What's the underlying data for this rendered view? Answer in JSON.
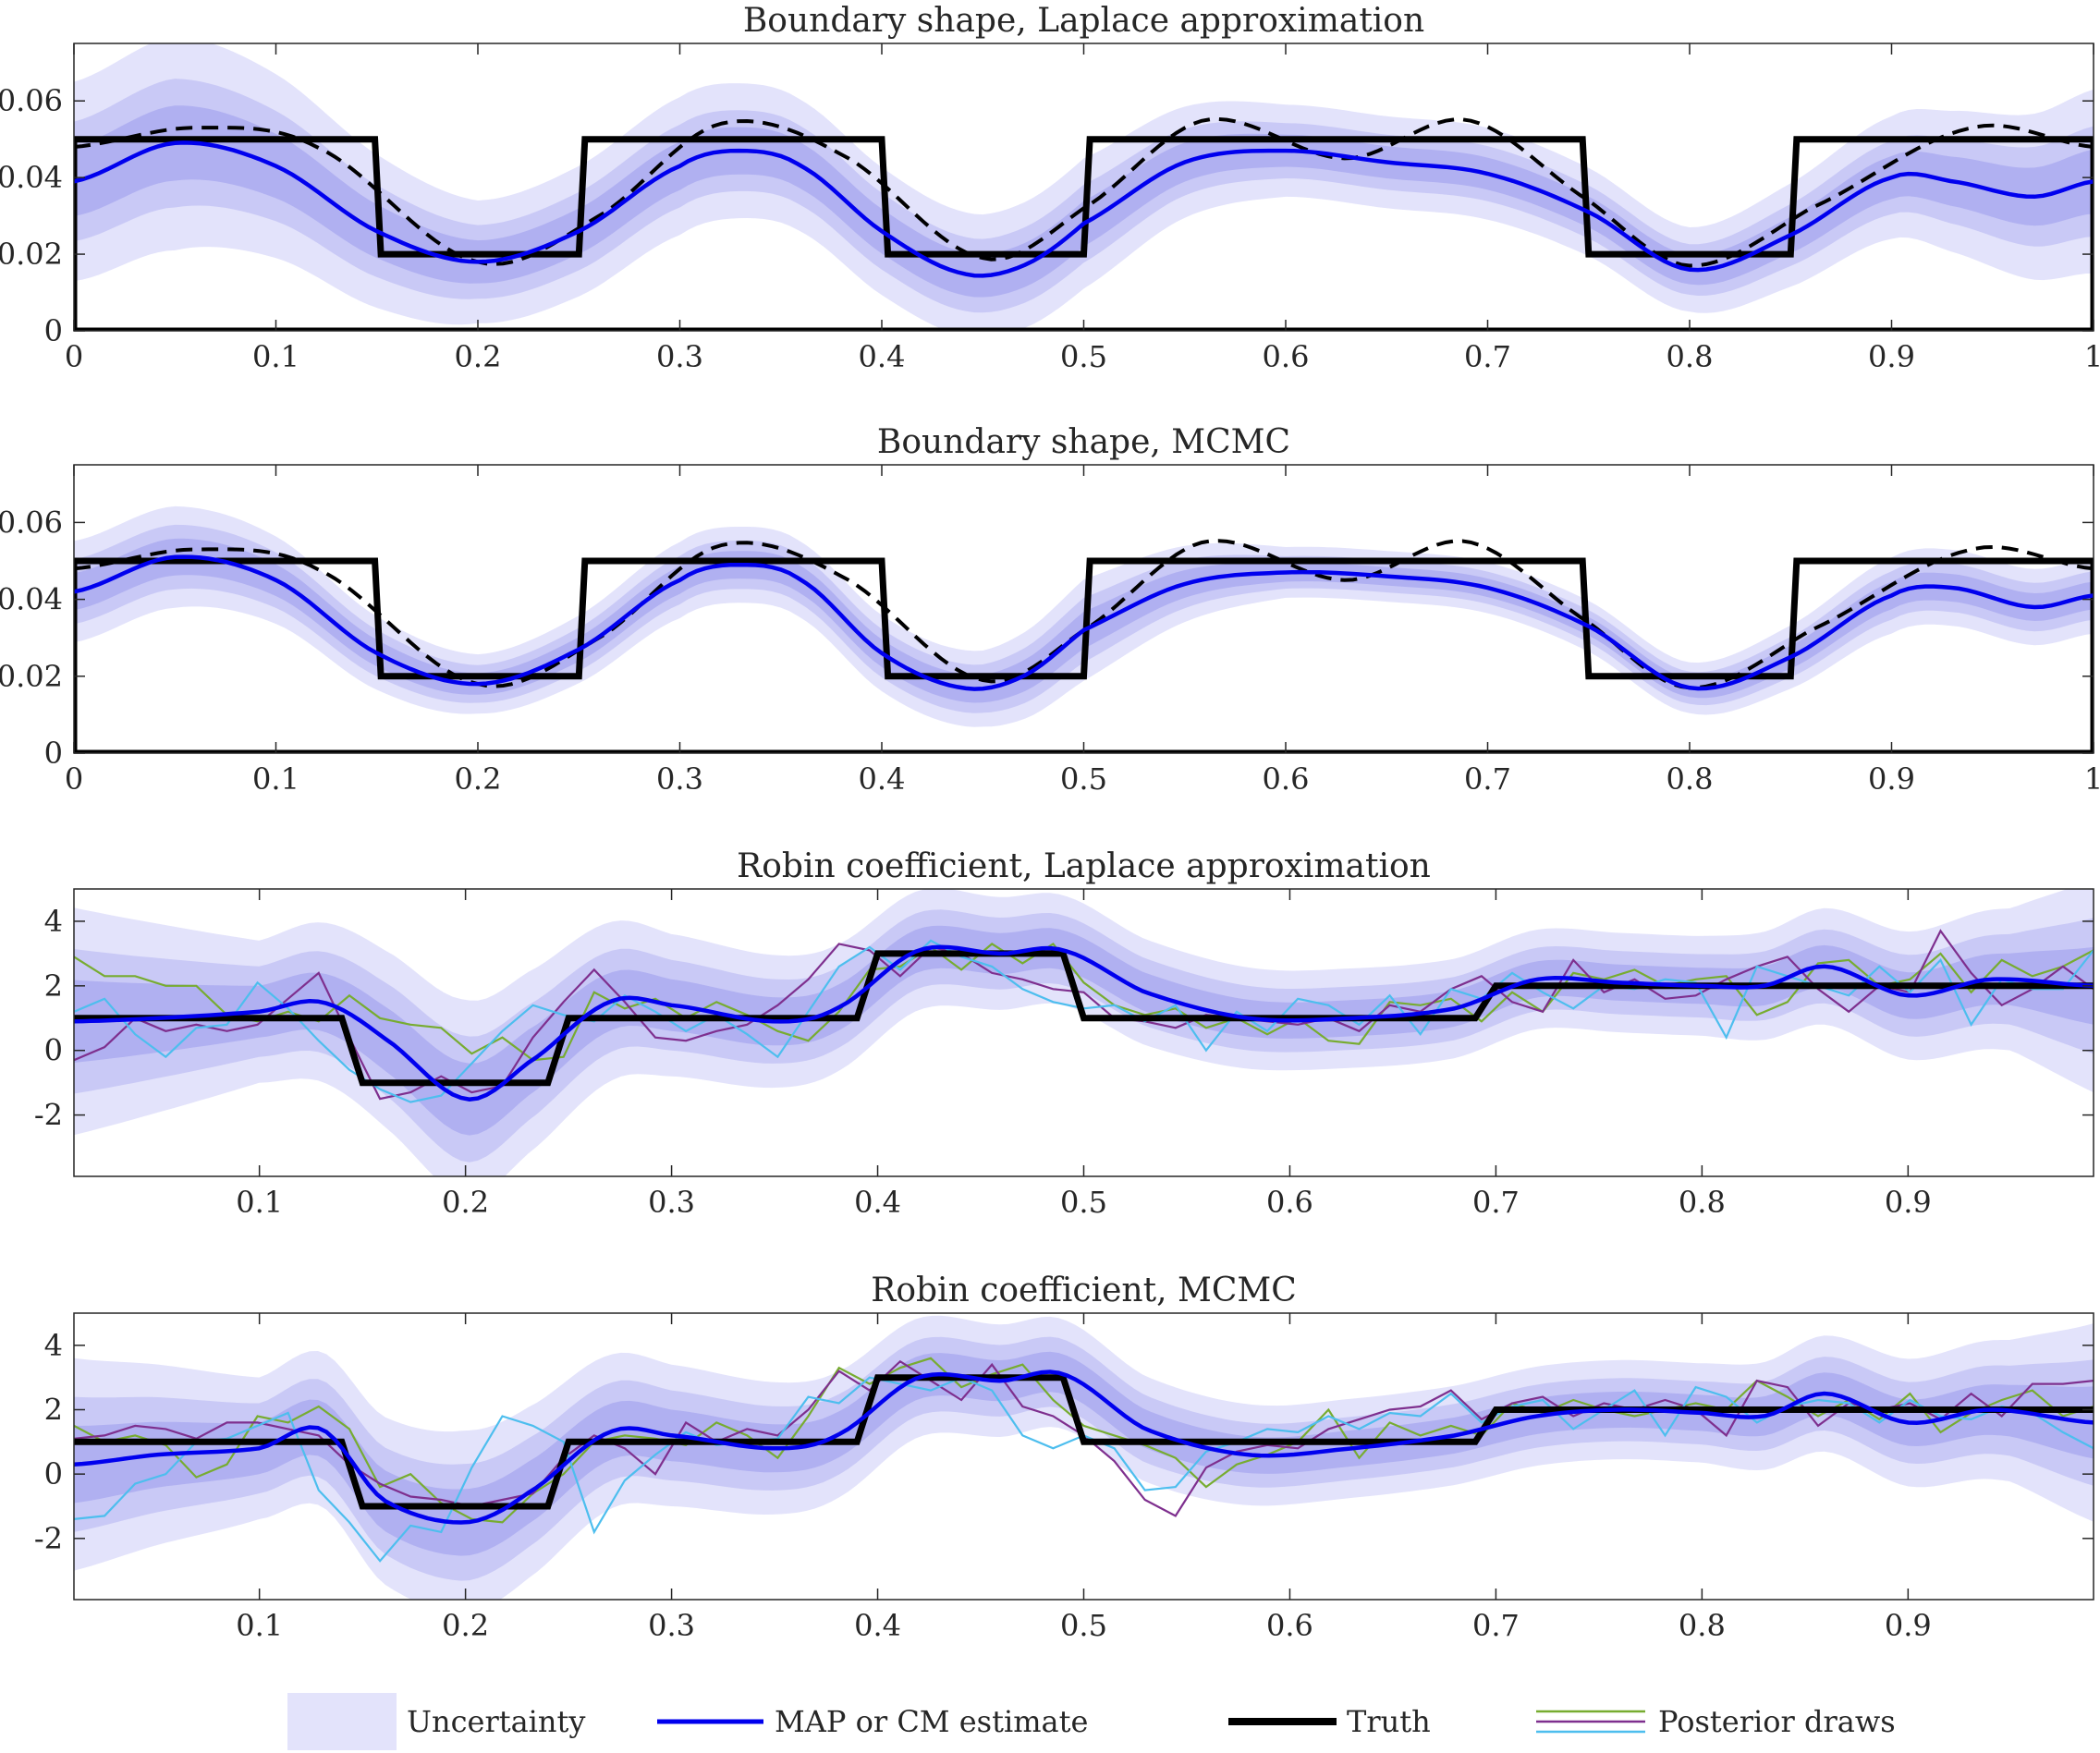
{
  "chart_data": [
    {
      "type": "line",
      "title": "Boundary shape, Laplace approximation",
      "xlim": [
        0,
        1
      ],
      "ylim": [
        0,
        0.075
      ],
      "xticks": [
        0,
        0.1,
        0.2,
        0.3,
        0.4,
        0.5,
        0.6,
        0.7,
        0.8,
        0.9,
        1
      ],
      "xtick_labels": [
        "0",
        "0.1",
        "0.2",
        "0.3",
        "0.4",
        "0.5",
        "0.6",
        "0.7",
        "0.8",
        "0.9",
        "1"
      ],
      "yticks": [
        0,
        0.02,
        0.04,
        0.06
      ],
      "ytick_labels": [
        "0",
        "0.02",
        "0.04",
        "0.06"
      ],
      "truth": {
        "x": [
          0,
          0,
          0.149,
          0.152,
          0.25,
          0.253,
          0.4,
          0.403,
          0.5,
          0.503,
          0.747,
          0.75,
          0.85,
          0.853,
          1,
          1,
          0
        ],
        "y": [
          0,
          0.05,
          0.05,
          0.02,
          0.02,
          0.05,
          0.05,
          0.02,
          0.02,
          0.05,
          0.05,
          0.02,
          0.02,
          0.05,
          0.05,
          0,
          0
        ]
      },
      "dashed": {
        "x": [
          0,
          0.06,
          0.12,
          0.2,
          0.26,
          0.32,
          0.38,
          0.45,
          0.5,
          0.56,
          0.63,
          0.69,
          0.75,
          0.8,
          0.86,
          0.94,
          1
        ],
        "y": [
          0.048,
          0.053,
          0.048,
          0.018,
          0.03,
          0.054,
          0.046,
          0.019,
          0.032,
          0.055,
          0.045,
          0.055,
          0.034,
          0.017,
          0.032,
          0.053,
          0.048
        ]
      },
      "estimate": {
        "x": [
          0,
          0.05,
          0.1,
          0.15,
          0.2,
          0.25,
          0.3,
          0.33,
          0.36,
          0.4,
          0.44,
          0.47,
          0.5,
          0.55,
          0.6,
          0.65,
          0.7,
          0.75,
          0.8,
          0.85,
          0.9,
          0.93,
          0.97,
          1
        ],
        "y": [
          0.039,
          0.049,
          0.043,
          0.026,
          0.018,
          0.026,
          0.043,
          0.047,
          0.043,
          0.026,
          0.015,
          0.017,
          0.028,
          0.044,
          0.047,
          0.044,
          0.041,
          0.031,
          0.016,
          0.025,
          0.04,
          0.039,
          0.035,
          0.039
        ]
      },
      "band_widths": [
        0.007,
        0.012,
        0.02
      ],
      "band_scale": {
        "x": [
          0,
          0.05,
          0.2,
          0.3,
          0.45,
          0.5,
          0.6,
          0.7,
          0.8,
          0.9,
          1
        ],
        "s": [
          1.3,
          1.4,
          0.8,
          0.9,
          0.8,
          0.85,
          0.6,
          0.6,
          0.55,
          0.8,
          1.2
        ]
      }
    },
    {
      "type": "line",
      "title": "Boundary shape, MCMC",
      "xlim": [
        0,
        1
      ],
      "ylim": [
        0,
        0.075
      ],
      "xticks": [
        0,
        0.1,
        0.2,
        0.3,
        0.4,
        0.5,
        0.6,
        0.7,
        0.8,
        0.9,
        1
      ],
      "xtick_labels": [
        "0",
        "0.1",
        "0.2",
        "0.3",
        "0.4",
        "0.5",
        "0.6",
        "0.7",
        "0.8",
        "0.9",
        "1"
      ],
      "yticks": [
        0,
        0.02,
        0.04,
        0.06
      ],
      "ytick_labels": [
        "0",
        "0.02",
        "0.04",
        "0.06"
      ],
      "truth": {
        "x": [
          0,
          0,
          0.149,
          0.152,
          0.25,
          0.253,
          0.4,
          0.403,
          0.5,
          0.503,
          0.747,
          0.75,
          0.85,
          0.853,
          1,
          1,
          0
        ],
        "y": [
          0,
          0.05,
          0.05,
          0.02,
          0.02,
          0.05,
          0.05,
          0.02,
          0.02,
          0.05,
          0.05,
          0.02,
          0.02,
          0.05,
          0.05,
          0,
          0
        ]
      },
      "dashed": {
        "x": [
          0,
          0.06,
          0.12,
          0.2,
          0.26,
          0.32,
          0.38,
          0.45,
          0.5,
          0.56,
          0.63,
          0.69,
          0.75,
          0.8,
          0.86,
          0.94,
          1
        ],
        "y": [
          0.048,
          0.053,
          0.048,
          0.018,
          0.03,
          0.054,
          0.046,
          0.019,
          0.032,
          0.055,
          0.045,
          0.055,
          0.034,
          0.017,
          0.032,
          0.053,
          0.048
        ]
      },
      "estimate": {
        "x": [
          0,
          0.05,
          0.1,
          0.15,
          0.2,
          0.25,
          0.3,
          0.33,
          0.36,
          0.4,
          0.44,
          0.47,
          0.5,
          0.55,
          0.6,
          0.65,
          0.7,
          0.75,
          0.8,
          0.85,
          0.9,
          0.93,
          0.97,
          1
        ],
        "y": [
          0.042,
          0.051,
          0.045,
          0.026,
          0.018,
          0.027,
          0.045,
          0.049,
          0.045,
          0.026,
          0.017,
          0.02,
          0.032,
          0.044,
          0.047,
          0.046,
          0.043,
          0.033,
          0.017,
          0.025,
          0.041,
          0.043,
          0.038,
          0.041
        ]
      },
      "band_widths": [
        0.004,
        0.007,
        0.011
      ],
      "band_scale": {
        "x": [
          0,
          0.05,
          0.2,
          0.3,
          0.45,
          0.5,
          0.6,
          0.7,
          0.8,
          0.9,
          1
        ],
        "s": [
          1.2,
          1.2,
          0.7,
          0.9,
          0.9,
          1.2,
          0.6,
          0.6,
          0.6,
          0.9,
          0.9
        ]
      }
    },
    {
      "type": "line",
      "title": "Robin coefficient, Laplace approximation",
      "xlim": [
        0.01,
        0.99
      ],
      "ylim": [
        -3.9,
        5
      ],
      "xticks": [
        0.1,
        0.2,
        0.3,
        0.4,
        0.5,
        0.6,
        0.7,
        0.8,
        0.9
      ],
      "xtick_labels": [
        "0.1",
        "0.2",
        "0.3",
        "0.4",
        "0.5",
        "0.6",
        "0.7",
        "0.8",
        "0.9"
      ],
      "yticks": [
        -2,
        0,
        2,
        4
      ],
      "ytick_labels": [
        "-2",
        "0",
        "2",
        "4"
      ],
      "truth": {
        "x": [
          0.01,
          0.14,
          0.15,
          0.24,
          0.25,
          0.39,
          0.4,
          0.49,
          0.5,
          0.69,
          0.7,
          0.99
        ],
        "y": [
          1,
          1,
          -1,
          -1,
          1,
          1,
          3,
          3,
          1,
          1,
          2,
          2
        ]
      },
      "estimate": {
        "x": [
          0.01,
          0.05,
          0.1,
          0.13,
          0.16,
          0.2,
          0.23,
          0.27,
          0.3,
          0.35,
          0.38,
          0.42,
          0.46,
          0.49,
          0.53,
          0.58,
          0.63,
          0.68,
          0.72,
          0.76,
          0.8,
          0.83,
          0.86,
          0.9,
          0.94,
          0.99
        ],
        "y": [
          0.9,
          1.0,
          1.2,
          1.5,
          0.4,
          -1.5,
          -0.4,
          1.5,
          1.4,
          0.9,
          1.3,
          3.1,
          3.0,
          3.1,
          1.8,
          1.0,
          1.0,
          1.3,
          2.2,
          2.1,
          2.0,
          2.0,
          2.6,
          1.7,
          2.2,
          2.0
        ]
      },
      "band_widths": [
        0.8,
        1.4,
        2.2
      ],
      "band_scale": {
        "x": [
          0.01,
          0.1,
          0.2,
          0.3,
          0.45,
          0.6,
          0.8,
          0.95,
          0.99
        ],
        "s": [
          1.6,
          1.0,
          1.4,
          1.0,
          0.8,
          0.7,
          0.7,
          1.0,
          1.5
        ]
      },
      "draws": [
        {
          "color": "#77ac30",
          "y": [
            2.9,
            2.3,
            2.3,
            2.0,
            2.0,
            1.1,
            0.9,
            1.2,
            0.9,
            1.7,
            1.0,
            0.8,
            0.7,
            -0.1,
            0.4,
            -0.3,
            -0.2,
            1.8,
            1.3,
            1.6,
            1.0,
            1.5,
            1.1,
            0.6,
            0.3,
            1.2,
            2.5,
            2.6,
            3.2,
            2.5,
            3.3,
            2.7,
            3.3,
            2.1,
            1.4,
            1.1,
            1.3,
            0.7,
            1.0,
            0.5,
            1.0,
            0.3,
            0.2,
            1.5,
            1.4,
            1.6,
            0.9,
            1.8,
            1.2,
            2.4,
            2.2,
            2.5,
            2.0,
            2.2,
            2.3,
            1.1,
            1.5,
            2.7,
            2.8,
            2.0,
            2.2,
            3.0,
            1.8,
            2.8,
            2.3,
            2.6,
            3.1
          ]
        },
        {
          "color": "#7e2f8e",
          "y": [
            -0.3,
            0.1,
            1.0,
            0.6,
            0.8,
            0.6,
            0.8,
            1.6,
            2.4,
            0.4,
            -1.5,
            -1.3,
            -0.8,
            -1.3,
            -1.1,
            0.4,
            1.5,
            2.5,
            1.5,
            0.4,
            0.3,
            0.6,
            0.8,
            1.4,
            2.2,
            3.3,
            3.1,
            2.3,
            3.2,
            3.0,
            2.4,
            2.2,
            1.9,
            1.8,
            1.0,
            0.9,
            0.7,
            1.1,
            1.0,
            0.9,
            0.8,
            1.0,
            0.6,
            1.4,
            1.2,
            1.9,
            2.3,
            1.5,
            1.2,
            2.8,
            1.8,
            2.2,
            1.6,
            1.7,
            2.2,
            2.6,
            2.9,
            1.9,
            1.2,
            2.0,
            1.8,
            3.7,
            2.4,
            1.4,
            1.9,
            2.6,
            1.9
          ]
        },
        {
          "color": "#4dbeee",
          "y": [
            1.2,
            1.6,
            0.5,
            -0.2,
            0.7,
            0.8,
            2.1,
            1.3,
            0.3,
            -0.6,
            -1.2,
            -1.6,
            -1.4,
            -0.4,
            0.6,
            1.4,
            1.1,
            0.9,
            1.7,
            1.2,
            0.6,
            1.1,
            0.5,
            -0.2,
            1.2,
            2.6,
            3.2,
            2.5,
            3.4,
            2.9,
            2.6,
            1.9,
            1.5,
            1.3,
            1.4,
            0.9,
            1.4,
            0.0,
            1.2,
            0.6,
            1.6,
            1.4,
            0.8,
            1.7,
            0.5,
            1.9,
            1.6,
            2.4,
            1.8,
            1.3,
            2.0,
            1.9,
            2.2,
            2.1,
            0.4,
            2.6,
            2.3,
            2.0,
            1.7,
            2.6,
            1.8,
            2.8,
            0.8,
            2.2,
            1.9,
            1.9,
            3.1
          ]
        }
      ]
    },
    {
      "type": "line",
      "title": "Robin coefficient, MCMC",
      "xlim": [
        0.01,
        0.99
      ],
      "ylim": [
        -3.9,
        5
      ],
      "xticks": [
        0.1,
        0.2,
        0.3,
        0.4,
        0.5,
        0.6,
        0.7,
        0.8,
        0.9
      ],
      "xtick_labels": [
        "0.1",
        "0.2",
        "0.3",
        "0.4",
        "0.5",
        "0.6",
        "0.7",
        "0.8",
        "0.9"
      ],
      "yticks": [
        -2,
        0,
        2,
        4
      ],
      "ytick_labels": [
        "-2",
        "0",
        "2",
        "4"
      ],
      "truth": {
        "x": [
          0.01,
          0.14,
          0.15,
          0.24,
          0.25,
          0.39,
          0.4,
          0.49,
          0.5,
          0.69,
          0.7,
          0.99
        ],
        "y": [
          1,
          1,
          -1,
          -1,
          1,
          1,
          3,
          3,
          1,
          1,
          2,
          2
        ]
      },
      "estimate": {
        "x": [
          0.01,
          0.05,
          0.1,
          0.13,
          0.16,
          0.2,
          0.23,
          0.27,
          0.3,
          0.35,
          0.38,
          0.42,
          0.46,
          0.49,
          0.53,
          0.58,
          0.63,
          0.68,
          0.72,
          0.76,
          0.8,
          0.83,
          0.86,
          0.9,
          0.94,
          0.99
        ],
        "y": [
          0.3,
          0.6,
          0.8,
          1.4,
          -0.8,
          -1.5,
          -0.6,
          1.3,
          1.2,
          0.8,
          1.2,
          3.0,
          2.9,
          3.1,
          1.4,
          0.6,
          0.8,
          1.2,
          1.8,
          2.0,
          1.9,
          1.8,
          2.5,
          1.6,
          2.0,
          1.6
        ]
      },
      "band_widths": [
        0.8,
        1.4,
        2.2
      ],
      "band_scale": {
        "x": [
          0.01,
          0.1,
          0.2,
          0.3,
          0.45,
          0.6,
          0.8,
          0.95,
          0.99
        ],
        "s": [
          1.5,
          1.0,
          1.3,
          1.0,
          0.8,
          0.7,
          0.7,
          1.0,
          1.4
        ]
      },
      "draws": [
        {
          "color": "#77ac30",
          "y": [
            1.5,
            1.0,
            1.2,
            0.9,
            -0.1,
            0.3,
            1.8,
            1.6,
            2.1,
            1.4,
            -0.4,
            0.0,
            -0.9,
            -1.4,
            -1.5,
            -0.6,
            0.0,
            1.0,
            1.2,
            1.1,
            0.9,
            1.6,
            1.2,
            0.5,
            1.8,
            3.3,
            2.8,
            3.3,
            3.6,
            2.7,
            3.1,
            3.4,
            2.3,
            1.5,
            1.2,
            0.9,
            0.5,
            -0.4,
            0.3,
            0.6,
            1.0,
            2.0,
            0.5,
            1.6,
            1.2,
            1.5,
            1.2,
            2.2,
            1.9,
            2.3,
            2.0,
            1.8,
            2.0,
            2.2,
            2.0,
            2.9,
            2.4,
            1.8,
            2.3,
            1.7,
            2.5,
            1.3,
            1.9,
            2.3,
            2.6,
            1.8,
            2.1
          ]
        },
        {
          "color": "#7e2f8e",
          "y": [
            1.1,
            1.2,
            1.5,
            1.4,
            1.1,
            1.6,
            1.6,
            1.4,
            1.2,
            0.3,
            -0.3,
            -0.7,
            -0.8,
            -1.0,
            -0.8,
            -0.6,
            0.5,
            1.2,
            0.8,
            0.0,
            1.6,
            1.0,
            1.4,
            1.2,
            2.0,
            3.2,
            2.6,
            3.5,
            2.9,
            2.3,
            3.4,
            2.1,
            1.8,
            1.2,
            0.4,
            -0.8,
            -1.3,
            0.2,
            0.7,
            0.9,
            0.8,
            1.4,
            1.7,
            2.0,
            2.1,
            2.6,
            1.7,
            2.2,
            2.4,
            1.8,
            2.2,
            2.0,
            2.3,
            2.0,
            1.2,
            2.9,
            2.7,
            1.5,
            2.2,
            2.0,
            2.2,
            1.7,
            2.5,
            1.8,
            2.8,
            2.8,
            2.9
          ]
        },
        {
          "color": "#4dbeee",
          "y": [
            -1.4,
            -1.3,
            -0.3,
            0.0,
            1.0,
            1.1,
            1.5,
            1.9,
            -0.5,
            -1.5,
            -2.7,
            -1.6,
            -1.8,
            0.2,
            1.8,
            1.5,
            1.0,
            -1.8,
            -0.2,
            0.6,
            1.3,
            0.9,
            1.0,
            1.1,
            2.4,
            2.2,
            3.0,
            2.8,
            2.6,
            3.0,
            2.6,
            1.2,
            0.8,
            1.2,
            0.8,
            -0.5,
            -0.4,
            0.7,
            1.0,
            1.4,
            1.3,
            1.8,
            1.4,
            1.9,
            1.8,
            2.5,
            1.6,
            2.1,
            2.3,
            1.4,
            2.0,
            2.6,
            1.2,
            2.7,
            2.4,
            1.6,
            2.1,
            2.3,
            2.2,
            1.6,
            2.3,
            1.8,
            1.7,
            2.1,
            1.9,
            1.3,
            0.8
          ]
        }
      ]
    }
  ],
  "legend": {
    "uncertainty_label": "Uncertainty",
    "estimate_label": "MAP or CM estimate",
    "truth_label": "Truth",
    "draws_label": "Posterior draws"
  },
  "colors": {
    "band_outer": "#e3e3fb",
    "band_middle": "#c9c9f6",
    "band_inner": "#b0b0f1",
    "estimate": "#0000ee",
    "truth": "#000000",
    "draw_green": "#77ac30",
    "draw_purple": "#7e2f8e",
    "draw_cyan": "#4dbeee"
  }
}
